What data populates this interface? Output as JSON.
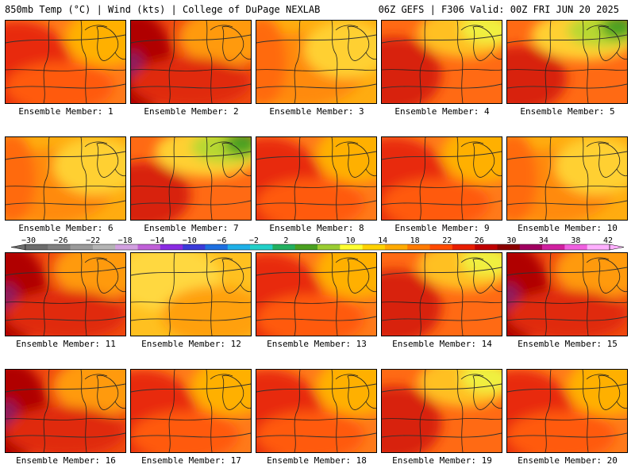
{
  "header": {
    "left_title": "850mb Temp (°C) | Wind (kts) | College of DuPage NEXLAB",
    "right_title": "06Z GEFS | F306 Valid: 00Z FRI JUN 20 2025"
  },
  "panels": [
    {
      "label": "Ensemble Member: 1",
      "scheme": "hot"
    },
    {
      "label": "Ensemble Member: 2",
      "scheme": "hotter"
    },
    {
      "label": "Ensemble Member: 3",
      "scheme": "warm"
    },
    {
      "label": "Ensemble Member: 4",
      "scheme": "hot-ne-cool"
    },
    {
      "label": "Ensemble Member: 5",
      "scheme": "hot-ne-green"
    },
    {
      "label": "Ensemble Member: 6",
      "scheme": "warm"
    },
    {
      "label": "Ensemble Member: 7",
      "scheme": "hot-ne-green"
    },
    {
      "label": "Ensemble Member: 8",
      "scheme": "hot"
    },
    {
      "label": "Ensemble Member: 9",
      "scheme": "hot"
    },
    {
      "label": "Ensemble Member: 10",
      "scheme": "warm"
    },
    {
      "label": "Ensemble Member: 11",
      "scheme": "hotter"
    },
    {
      "label": "Ensemble Member: 12",
      "scheme": "mild"
    },
    {
      "label": "Ensemble Member: 13",
      "scheme": "hot"
    },
    {
      "label": "Ensemble Member: 14",
      "scheme": "hot-ne-cool"
    },
    {
      "label": "Ensemble Member: 15",
      "scheme": "hotter"
    },
    {
      "label": "Ensemble Member: 16",
      "scheme": "hotter"
    },
    {
      "label": "Ensemble Member: 17",
      "scheme": "hot"
    },
    {
      "label": "Ensemble Member: 18",
      "scheme": "hot"
    },
    {
      "label": "Ensemble Member: 19",
      "scheme": "hot-ne-cool"
    },
    {
      "label": "Ensemble Member: 20",
      "scheme": "hot"
    }
  ],
  "colorbar": {
    "labels": [
      "−30",
      "−26",
      "−22",
      "−18",
      "−14",
      "−10",
      "−6",
      "−2",
      "2",
      "6",
      "10",
      "14",
      "18",
      "22",
      "26",
      "30",
      "34",
      "38",
      "42"
    ],
    "colors": [
      "#6c6c6c",
      "#808080",
      "#9a9a9a",
      "#b4b4b4",
      "#d2a0e0",
      "#c060d8",
      "#8a2be2",
      "#3b3bd9",
      "#1e6fe0",
      "#1fb0e8",
      "#22d0c8",
      "#22b060",
      "#4aa020",
      "#9acd32",
      "#ffff30",
      "#ffd200",
      "#ffaa00",
      "#ff7a00",
      "#ff4a00",
      "#e81e00",
      "#c00000",
      "#8b0000",
      "#a00060",
      "#d020a0",
      "#f060e0",
      "#ffb0ff"
    ]
  }
}
